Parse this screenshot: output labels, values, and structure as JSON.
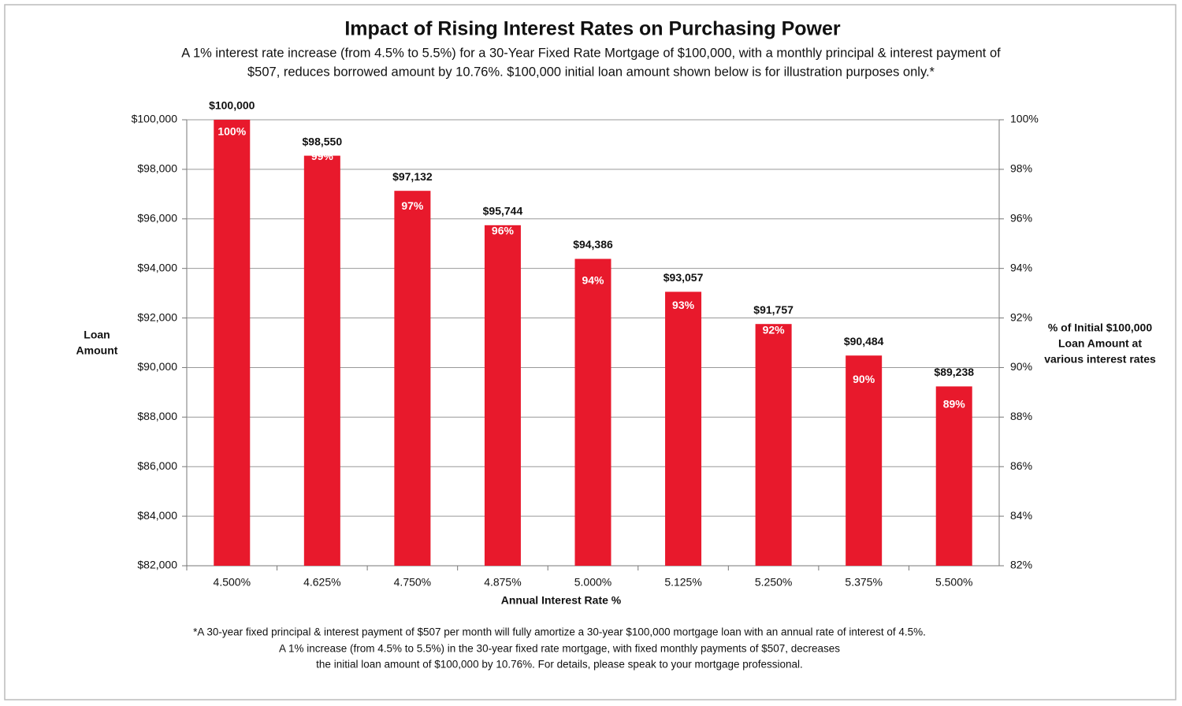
{
  "chart_data": {
    "type": "bar",
    "title": "Impact of Rising Interest Rates on Purchasing Power",
    "subtitle": [
      "A 1% interest rate increase (from 4.5% to 5.5%) for a 30-Year Fixed Rate Mortgage of $100,000, with a monthly principal & interest payment of",
      "$507, reduces borrowed amount by 10.76%. $100,000 initial loan amount shown below is for illustration purposes only.*"
    ],
    "x_label": "Annual Interest Rate %",
    "y_label": [
      "Loan",
      "Amount"
    ],
    "y2_label": [
      "% of Initial $100,000",
      "Loan Amount at",
      "various interest rates"
    ],
    "footnote": [
      "*A  30-year fixed principal & interest payment of $507 per month will fully amortize a 30-year $100,000 mortgage loan with an annual rate of interest of 4.5%.",
      "A 1% increase  (from 4.5% to 5.5%) in the 30-year fixed rate mortgage, with fixed monthly payments of $507, decreases",
      "the initial loan amount of $100,000 by 10.76%. For details, please speak to your mortgage professional."
    ],
    "categories": [
      "4.500%",
      "4.625%",
      "4.750%",
      "4.875%",
      "5.000%",
      "5.125%",
      "5.250%",
      "5.375%",
      "5.500%"
    ],
    "series": [
      {
        "name": "Loan Amount",
        "color": "#e8192c",
        "values": [
          100000,
          98550,
          97132,
          95744,
          94386,
          93057,
          91757,
          90484,
          89238
        ],
        "value_labels": [
          "$100,000",
          "$98,550",
          "$97,132",
          "$95,744",
          "$94,386",
          "$93,057",
          "$91,757",
          "$90,484",
          "$89,238"
        ]
      },
      {
        "name": "% of Initial",
        "axis": "y2",
        "color": "#ffffff",
        "values": [
          100,
          99,
          97,
          96,
          94,
          93,
          92,
          90,
          89
        ],
        "value_labels": [
          "100%",
          "99%",
          "97%",
          "96%",
          "94%",
          "93%",
          "92%",
          "90%",
          "89%"
        ]
      }
    ],
    "ylim": [
      82000,
      100000
    ],
    "yticks": [
      {
        "value": 82000,
        "label": "$82,000"
      },
      {
        "value": 84000,
        "label": "$84,000"
      },
      {
        "value": 86000,
        "label": "$86,000"
      },
      {
        "value": 88000,
        "label": "$88,000"
      },
      {
        "value": 90000,
        "label": "$90,000"
      },
      {
        "value": 92000,
        "label": "$92,000"
      },
      {
        "value": 94000,
        "label": "$94,000"
      },
      {
        "value": 96000,
        "label": "$96,000"
      },
      {
        "value": 98000,
        "label": "$98,000"
      },
      {
        "value": 100000,
        "label": "$100,000"
      }
    ],
    "y2lim": [
      82,
      100
    ],
    "y2ticks": [
      {
        "value": 82,
        "label": "82%"
      },
      {
        "value": 84,
        "label": "84%"
      },
      {
        "value": 86,
        "label": "86%"
      },
      {
        "value": 88,
        "label": "88%"
      },
      {
        "value": 90,
        "label": "90%"
      },
      {
        "value": 92,
        "label": "92%"
      },
      {
        "value": 94,
        "label": "94%"
      },
      {
        "value": 96,
        "label": "96%"
      },
      {
        "value": 98,
        "label": "98%"
      },
      {
        "value": 100,
        "label": "100%"
      }
    ],
    "grid": true
  }
}
